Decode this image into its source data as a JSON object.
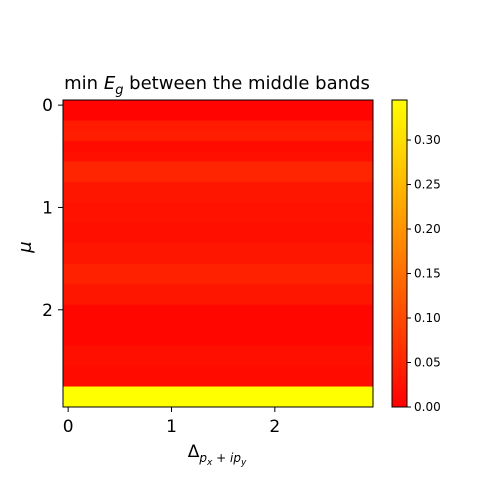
{
  "chart_data": {
    "type": "heatmap",
    "title": {
      "prefix": "min ",
      "symbol": "E",
      "sub": "g",
      "suffix": " between the middle bands"
    },
    "xlabel": {
      "symbol": "Δ",
      "sub": "p",
      "subsub": "x",
      "mid": " + ",
      "sub2": "ip",
      "subsub2": "y"
    },
    "ylabel": "μ",
    "x_ticks": [
      "0",
      "1",
      "2"
    ],
    "y_ticks": [
      "0",
      "1",
      "2"
    ],
    "x_step": 0.1,
    "y_step": 0.1,
    "x_extent": [
      -0.05,
      2.95
    ],
    "y_extent": [
      -0.05,
      2.95
    ],
    "y_row_centers": [
      0.0,
      0.1,
      0.2,
      0.3,
      0.4,
      0.5,
      0.6,
      0.7,
      0.8,
      0.9,
      1.0,
      1.1,
      1.2,
      1.3,
      1.4,
      1.5,
      1.6,
      1.7,
      1.8,
      1.9,
      2.0,
      2.1,
      2.2,
      2.3,
      2.4,
      2.5,
      2.6,
      2.7,
      2.8,
      2.9
    ],
    "row_values": [
      0.005,
      0.005,
      0.035,
      0.04,
      0.015,
      0.02,
      0.05,
      0.05,
      0.03,
      0.03,
      0.025,
      0.025,
      0.02,
      0.02,
      0.03,
      0.03,
      0.045,
      0.045,
      0.03,
      0.03,
      0.01,
      0.01,
      0.01,
      0.01,
      0.02,
      0.02,
      0.015,
      0.015,
      0.345,
      0.345
    ],
    "colorbar": {
      "min": 0.0,
      "max": 0.345,
      "ticks": [
        "0.00",
        "0.05",
        "0.10",
        "0.15",
        "0.20",
        "0.25",
        "0.30"
      ]
    },
    "colormap": [
      "#ff0000",
      "#ffff00"
    ]
  }
}
